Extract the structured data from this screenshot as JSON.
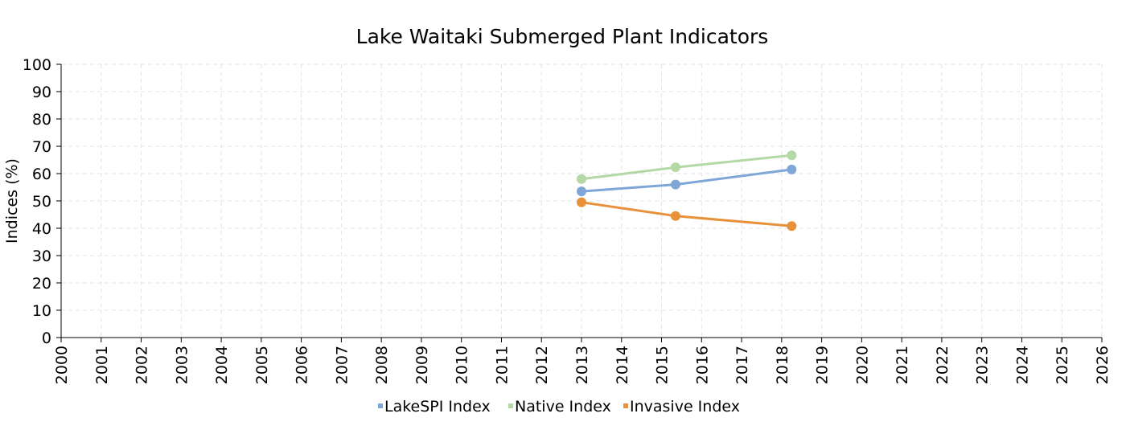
{
  "chart_data": {
    "type": "line",
    "title": "Lake Waitaki Submerged Plant Indicators",
    "xlabel": "",
    "ylabel": "Indices (%)",
    "xlim": [
      2000,
      2026
    ],
    "ylim": [
      0,
      100
    ],
    "x_ticks": [
      "2000",
      "2001",
      "2002",
      "2003",
      "2004",
      "2005",
      "2006",
      "2007",
      "2008",
      "2009",
      "2010",
      "2011",
      "2012",
      "2013",
      "2014",
      "2015",
      "2016",
      "2017",
      "2018",
      "2019",
      "2020",
      "2021",
      "2022",
      "2023",
      "2024",
      "2025",
      "2026"
    ],
    "y_ticks": [
      "0",
      "10",
      "20",
      "30",
      "40",
      "50",
      "60",
      "70",
      "80",
      "90",
      "100"
    ],
    "grid": true,
    "legend_position": "bottom",
    "series": [
      {
        "name": "LakeSPI Index",
        "color": "#7ea7d8",
        "x": [
          2013.0,
          2015.35,
          2018.25
        ],
        "values": [
          53.5,
          56.0,
          61.5
        ]
      },
      {
        "name": "Native Index",
        "color": "#b2d9a6",
        "x": [
          2013.0,
          2015.35,
          2018.25
        ],
        "values": [
          58.0,
          62.3,
          66.7
        ]
      },
      {
        "name": "Invasive Index",
        "color": "#e8913a",
        "x": [
          2013.0,
          2015.35,
          2018.25
        ],
        "values": [
          49.5,
          44.5,
          40.8
        ]
      }
    ]
  }
}
